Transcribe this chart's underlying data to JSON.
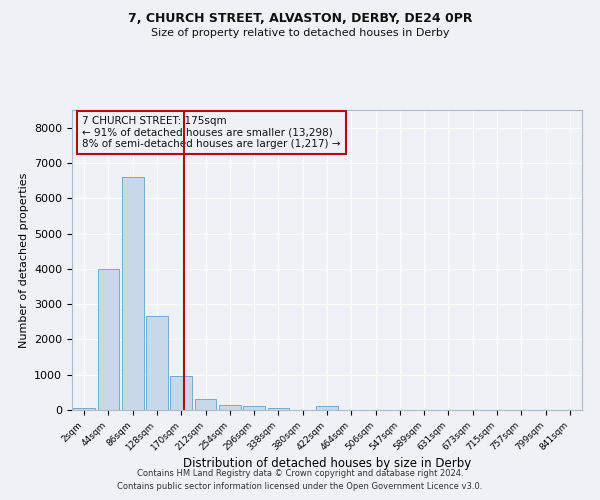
{
  "title1": "7, CHURCH STREET, ALVASTON, DERBY, DE24 0PR",
  "title2": "Size of property relative to detached houses in Derby",
  "xlabel": "Distribution of detached houses by size in Derby",
  "ylabel": "Number of detached properties",
  "categories": [
    "2sqm",
    "44sqm",
    "86sqm",
    "128sqm",
    "170sqm",
    "212sqm",
    "254sqm",
    "296sqm",
    "338sqm",
    "380sqm",
    "422sqm",
    "464sqm",
    "506sqm",
    "547sqm",
    "589sqm",
    "631sqm",
    "673sqm",
    "715sqm",
    "757sqm",
    "799sqm",
    "841sqm"
  ],
  "values": [
    70,
    4000,
    6600,
    2650,
    950,
    320,
    130,
    100,
    70,
    0,
    100,
    0,
    0,
    0,
    0,
    0,
    0,
    0,
    0,
    0,
    0
  ],
  "bar_color": "#c8d8e8",
  "bar_edge_color": "#7aaac8",
  "vline_color": "#aa1111",
  "annotation_text": "7 CHURCH STREET: 175sqm\n← 91% of detached houses are smaller (13,298)\n8% of semi-detached houses are larger (1,217) →",
  "annotation_box_color": "#aa1111",
  "ylim": [
    0,
    8500
  ],
  "yticks": [
    0,
    1000,
    2000,
    3000,
    4000,
    5000,
    6000,
    7000,
    8000
  ],
  "background_color": "#eef2f7",
  "grid_color": "#ffffff",
  "footer_line1": "Contains HM Land Registry data © Crown copyright and database right 2024.",
  "footer_line2": "Contains public sector information licensed under the Open Government Licence v3.0."
}
